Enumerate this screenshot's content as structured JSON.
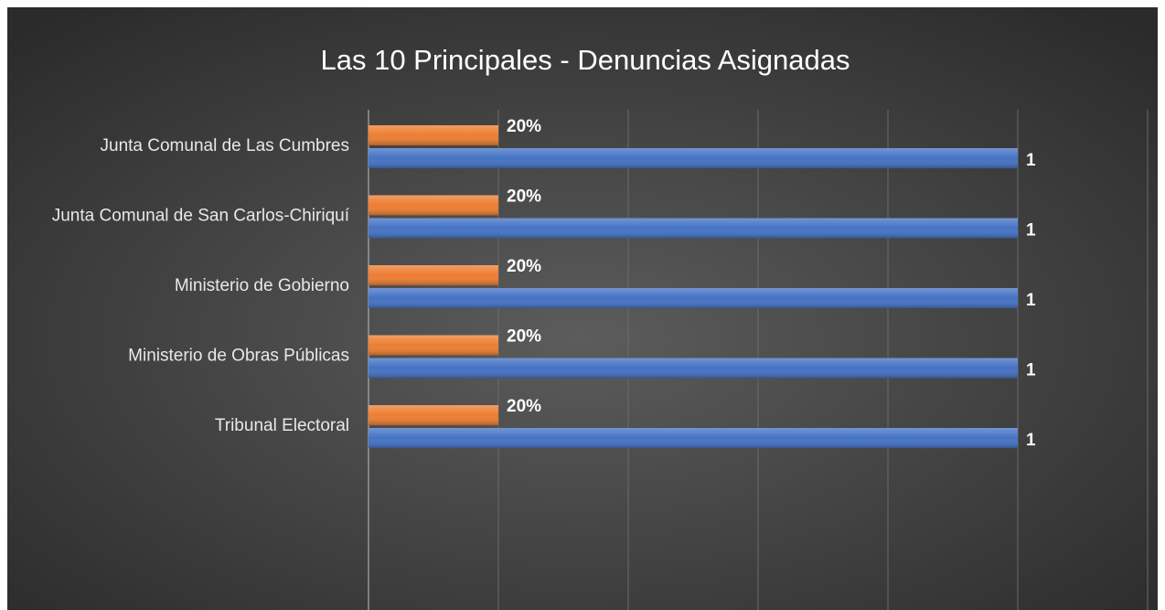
{
  "chart_data": {
    "type": "hbar",
    "title": "Las 10 Principales - Denuncias Asignadas",
    "categories": [
      "Junta Comunal de Las Cumbres",
      "Junta Comunal de San Carlos-Chiriquí",
      "Ministerio de Gobierno",
      "Ministerio de Obras Públicas",
      "Tribunal Electoral"
    ],
    "series": [
      {
        "color": "#ed7d31",
        "axis": "x2",
        "values": [
          20,
          20,
          20,
          20,
          20
        ],
        "value_labels": [
          "20%",
          "20%",
          "20%",
          "20%",
          "20%"
        ]
      },
      {
        "color": "#4472c4",
        "values": [
          1,
          1,
          1,
          1,
          1
        ]
      }
    ],
    "xlim": [
      0,
      1.2
    ],
    "xticks": [
      0,
      0.2,
      0.4,
      0.6,
      0.8,
      1,
      1.2
    ],
    "x2lim": [
      0,
      120
    ],
    "grid": true
  }
}
